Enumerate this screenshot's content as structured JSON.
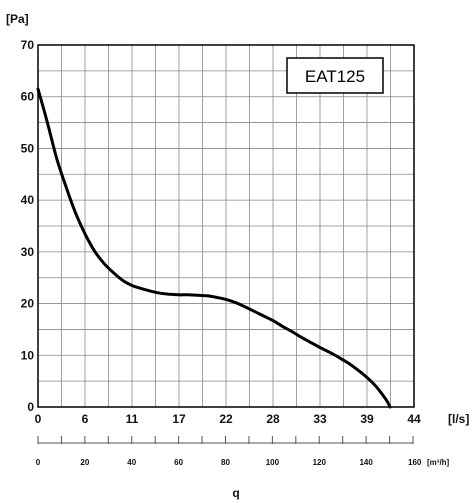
{
  "chart_data": {
    "type": "line",
    "ylabel": "[Pa]",
    "xlabel": "[l/s]",
    "secondary_xlabel": "[m³/h]",
    "bottom_label": "q",
    "legend": "EAT125",
    "ylim": [
      0,
      70
    ],
    "xlim": [
      0,
      44
    ],
    "y_ticks": [
      "0",
      "10",
      "20",
      "30",
      "40",
      "50",
      "60",
      "70"
    ],
    "x_ticks": [
      "0",
      "6",
      "11",
      "17",
      "22",
      "28",
      "33",
      "39",
      "44"
    ],
    "secondary_x_ticks": [
      "0",
      "20",
      "40",
      "60",
      "80",
      "100",
      "120",
      "140",
      "160"
    ],
    "grid": true,
    "series": [
      {
        "name": "EAT125",
        "x": [
          0,
          1.1,
          2.2,
          3.3,
          4.4,
          5.5,
          6.6,
          7.7,
          8.8,
          9.9,
          11,
          12.1,
          13.2,
          14.3,
          15.4,
          16.5,
          17.6,
          18.7,
          19.8,
          20.9,
          22,
          23.1,
          24.2,
          25.3,
          26.4,
          27.5,
          28.6,
          29.7,
          30.8,
          31.9,
          33,
          34.1,
          35.2,
          36.3,
          37.4,
          38.5,
          39.6,
          40.7,
          41.2
        ],
        "y": [
          61.5,
          55,
          48,
          42.5,
          37.5,
          33.5,
          30.2,
          27.8,
          26,
          24.5,
          23.5,
          22.9,
          22.4,
          22,
          21.8,
          21.7,
          21.7,
          21.6,
          21.5,
          21.2,
          20.8,
          20.2,
          19.4,
          18.5,
          17.6,
          16.7,
          15.6,
          14.6,
          13.5,
          12.5,
          11.5,
          10.6,
          9.6,
          8.5,
          7.2,
          5.7,
          3.9,
          1.5,
          0
        ]
      }
    ]
  }
}
